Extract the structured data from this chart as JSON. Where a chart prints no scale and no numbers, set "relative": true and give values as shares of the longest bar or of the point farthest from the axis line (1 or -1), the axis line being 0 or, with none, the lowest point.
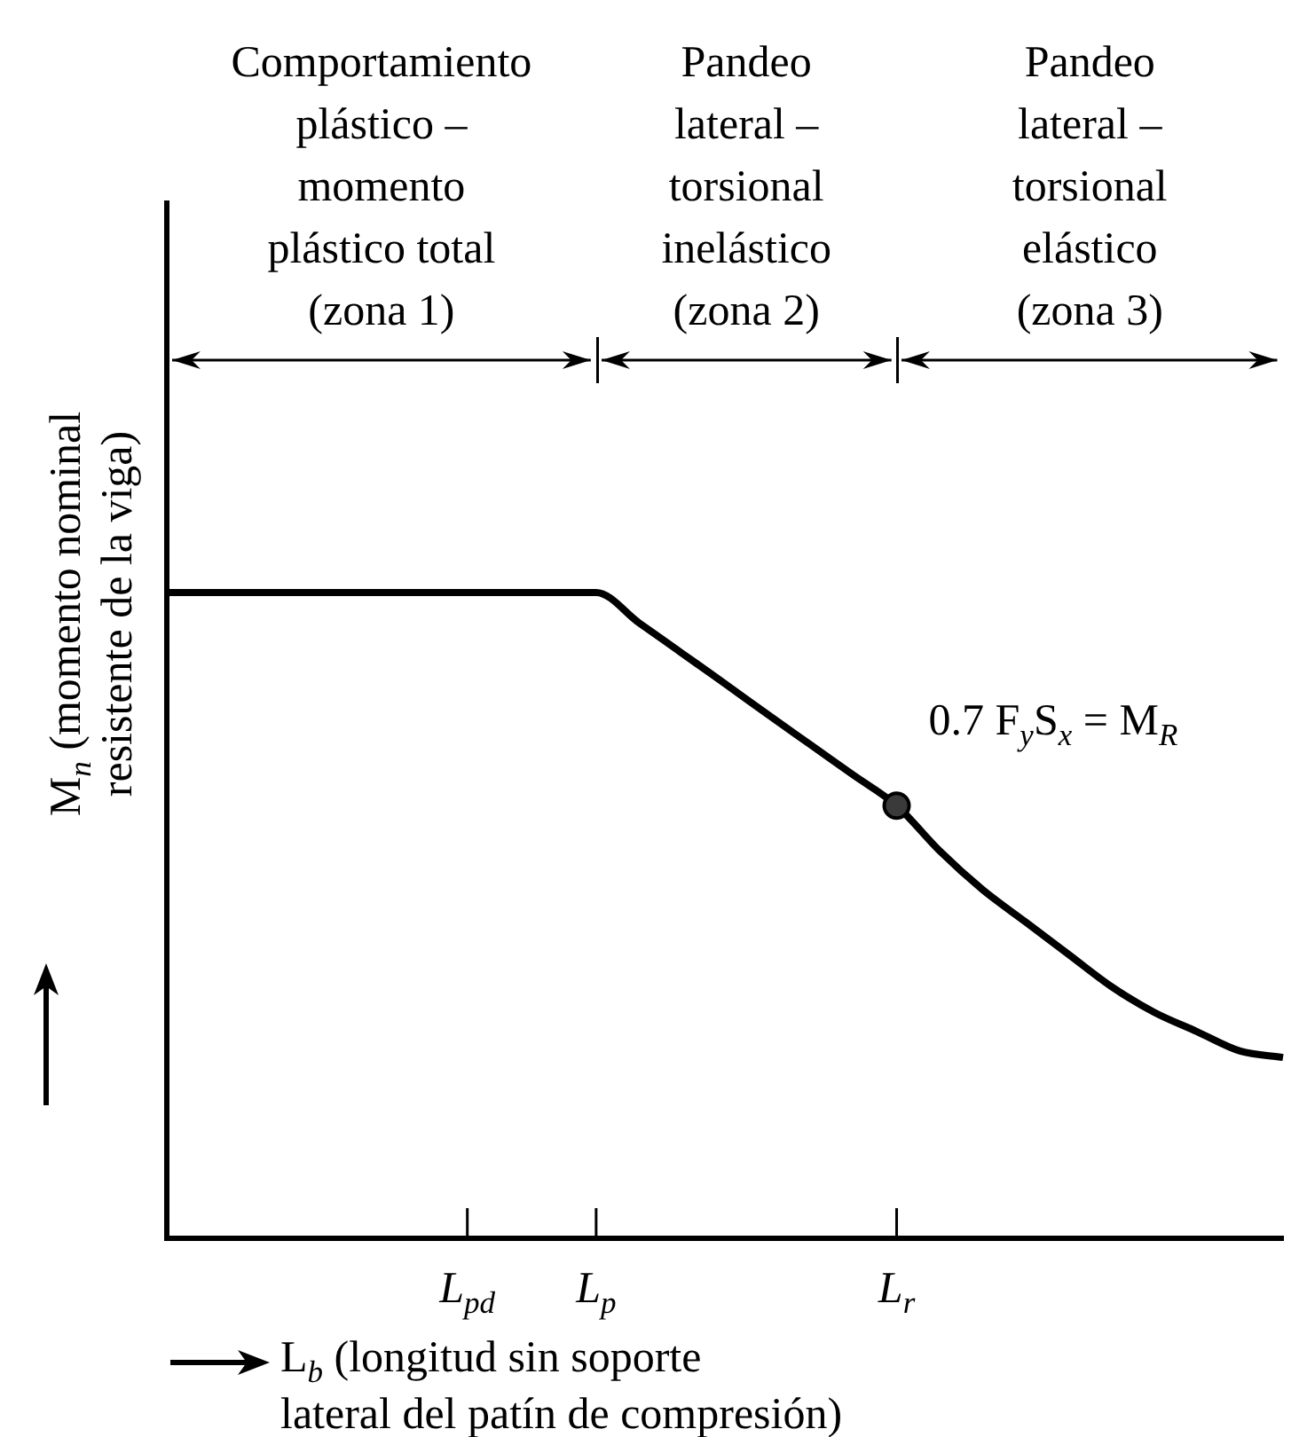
{
  "chart_data": {
    "type": "line",
    "relative": true,
    "xlabel": "L$_{b}$ (longitud sin soporte\nlateral del patín de compresión)",
    "ylabel": "M$_{n}$ (momento nominal\nresistente de la viga)",
    "categories": [
      null,
      null,
      null,
      null,
      null,
      null,
      null,
      "L$_{pd}$",
      null,
      null,
      "L$_{p}$",
      null,
      null,
      null,
      null,
      null,
      null,
      "L$_{r}$",
      null,
      null,
      null,
      null,
      null,
      null,
      null,
      null,
      null
    ],
    "series": [
      {
        "type": "line",
        "color": "#000000",
        "marker": "none",
        "values": [
          1,
          1,
          1,
          1,
          1,
          1,
          1,
          1,
          1,
          1,
          1,
          0.953,
          0.906,
          0.859,
          0.811,
          0.764,
          0.717,
          0.67,
          0.6,
          0.54,
          0.49,
          0.44,
          0.39,
          0.35,
          0.32,
          0.29,
          0.28
        ]
      },
      {
        "type": "scatter",
        "color": "#3a3a3a",
        "marker": "circle",
        "x": [
          "L$_{r}$"
        ],
        "values": [
          0.67
        ]
      }
    ],
    "annotations": [
      "Comportamiento\nplástico –\nmomento\nplástico total\n(zona 1)",
      "Pandeo\nlateral –\ntorsional\ninelástico\n(zona 2)",
      "Pandeo\nlateral –\ntorsional\nelástico\n(zona 3)",
      {
        "text": "0.7 F$_{y}$S$_{x}$ = M$_{R}$",
        "x": "L$_{r}$",
        "y": 0.67
      }
    ],
    "grid": false,
    "legend": false
  }
}
